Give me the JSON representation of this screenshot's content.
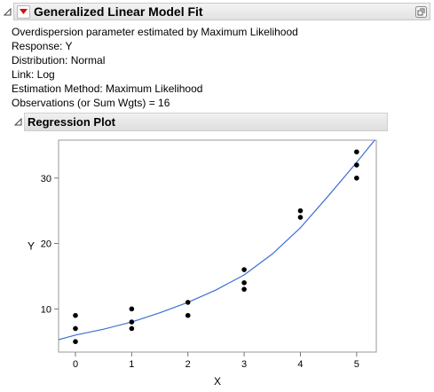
{
  "report": {
    "title": "Generalized Linear Model Fit",
    "info_lines": [
      "Overdispersion parameter estimated by Maximum Likelihood",
      "Response: Y",
      "Distribution: Normal",
      "Link: Log",
      "Estimation Method: Maximum Likelihood",
      "Observations (or Sum Wgts) = 16"
    ]
  },
  "regression_plot": {
    "title": "Regression Plot"
  },
  "icons": {
    "disclosure": "disclosure-triangle-icon",
    "menu": "red-triangle-menu-icon",
    "corner": "restore-window-icon"
  },
  "colors": {
    "menu_triangle": "#d01010",
    "fit_line": "#3a6fd8",
    "points": "#000000"
  },
  "chart_data": {
    "type": "scatter",
    "title": "",
    "xlabel": "X",
    "ylabel": "Y",
    "xlim": [
      -0.3,
      5.35
    ],
    "ylim": [
      3.4,
      35.8
    ],
    "xticks": [
      0,
      1,
      2,
      3,
      4,
      5
    ],
    "yticks": [
      10,
      20,
      30
    ],
    "grid": false,
    "points": [
      {
        "x": 0,
        "y": 5
      },
      {
        "x": 0,
        "y": 7
      },
      {
        "x": 0,
        "y": 9
      },
      {
        "x": 1,
        "y": 7
      },
      {
        "x": 1,
        "y": 8
      },
      {
        "x": 1,
        "y": 10
      },
      {
        "x": 2,
        "y": 9
      },
      {
        "x": 2,
        "y": 11
      },
      {
        "x": 3,
        "y": 13
      },
      {
        "x": 3,
        "y": 14
      },
      {
        "x": 3,
        "y": 16
      },
      {
        "x": 4,
        "y": 24
      },
      {
        "x": 4,
        "y": 25
      },
      {
        "x": 5,
        "y": 30
      },
      {
        "x": 5,
        "y": 32
      },
      {
        "x": 5,
        "y": 34
      }
    ],
    "fit": {
      "name": "",
      "x": [
        -0.3,
        0,
        0.5,
        1,
        1.5,
        2,
        2.5,
        3,
        3.5,
        4,
        4.5,
        5,
        5.35
      ],
      "y": [
        5.3,
        6.0,
        6.9,
        8.0,
        9.4,
        11.0,
        12.9,
        15.2,
        18.4,
        22.4,
        27.3,
        32.4,
        36.1
      ]
    }
  }
}
